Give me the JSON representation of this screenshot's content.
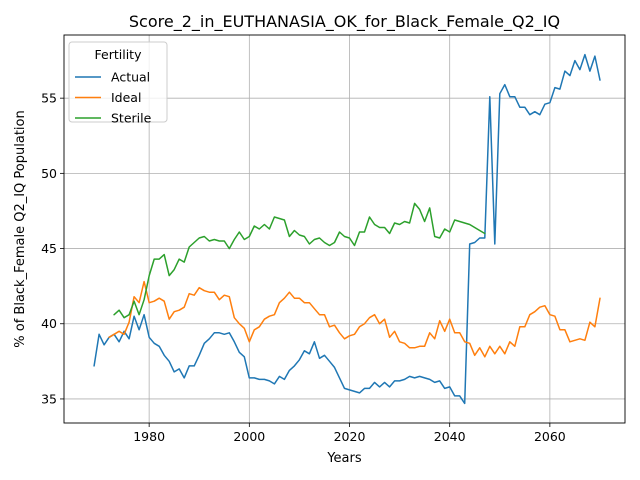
{
  "chart_data": {
    "type": "line",
    "title": "Score_2_in_EUTHANASIA_OK_for_Black_Female_Q2_IQ",
    "xlabel": "Years",
    "ylabel": "% of Black_Female Q2_IQ Population",
    "xlim": [
      1963,
      2075
    ],
    "ylim": [
      33.4,
      59.2
    ],
    "xticks": [
      1980,
      2000,
      2020,
      2040,
      2060
    ],
    "yticks": [
      35,
      40,
      45,
      50,
      55
    ],
    "grid": true,
    "legend": {
      "title": "Fertility",
      "placement": "upper-left"
    },
    "series": [
      {
        "name": "Actual",
        "color": "#1f77b4",
        "x": [
          1969,
          1970,
          1971,
          1972,
          1973,
          1974,
          1975,
          1976,
          1977,
          1978,
          1979,
          1980,
          1981,
          1982,
          1983,
          1984,
          1985,
          1986,
          1987,
          1988,
          1989,
          1990,
          1991,
          1992,
          1993,
          1994,
          1995,
          1996,
          1997,
          1998,
          1999,
          2000,
          2001,
          2002,
          2003,
          2004,
          2005,
          2006,
          2007,
          2008,
          2009,
          2010,
          2011,
          2012,
          2013,
          2014,
          2015,
          2016,
          2017,
          2018,
          2019,
          2020,
          2021,
          2022,
          2023,
          2024,
          2025,
          2026,
          2027,
          2028,
          2029,
          2030,
          2031,
          2032,
          2033,
          2034,
          2035,
          2036,
          2037,
          2038,
          2039,
          2040,
          2041,
          2042,
          2043,
          2044,
          2045,
          2046,
          2047,
          2048,
          2049,
          2050,
          2051,
          2052,
          2053,
          2054,
          2055,
          2056,
          2057,
          2058,
          2059,
          2060,
          2061,
          2062,
          2063,
          2064,
          2065,
          2066,
          2067,
          2068,
          2069,
          2070
        ],
        "values": [
          37.2,
          39.3,
          38.6,
          39.1,
          39.3,
          38.8,
          39.5,
          39.0,
          40.5,
          39.6,
          40.6,
          39.1,
          38.7,
          38.5,
          37.9,
          37.5,
          36.8,
          37.0,
          36.4,
          37.2,
          37.2,
          37.9,
          38.7,
          39.0,
          39.4,
          39.4,
          39.3,
          39.4,
          38.8,
          38.1,
          37.8,
          36.4,
          36.4,
          36.3,
          36.3,
          36.2,
          36.0,
          36.5,
          36.3,
          36.9,
          37.2,
          37.6,
          38.2,
          38.0,
          38.8,
          37.7,
          37.9,
          37.5,
          37.1,
          36.4,
          35.7,
          35.6,
          35.5,
          35.4,
          35.7,
          35.7,
          36.1,
          35.8,
          36.1,
          35.8,
          36.2,
          36.2,
          36.3,
          36.5,
          36.4,
          36.5,
          36.4,
          36.3,
          36.1,
          36.2,
          35.7,
          35.8,
          35.2,
          35.2,
          34.7,
          45.3,
          45.4,
          45.7,
          45.7,
          55.1,
          45.3,
          55.3,
          55.9,
          55.1,
          55.1,
          54.4,
          54.4,
          53.9,
          54.1,
          53.9,
          54.6,
          54.7,
          55.7,
          55.6,
          56.8,
          56.5,
          57.5,
          56.9,
          57.9,
          56.8,
          57.8,
          56.2
        ]
      },
      {
        "name": "Ideal",
        "color": "#ff7f0e",
        "x": [
          1972,
          1973,
          1974,
          1975,
          1976,
          1977,
          1978,
          1979,
          1980,
          1981,
          1982,
          1983,
          1984,
          1985,
          1986,
          1987,
          1988,
          1989,
          1990,
          1991,
          1992,
          1993,
          1994,
          1995,
          1996,
          1997,
          1998,
          1999,
          2000,
          2001,
          2002,
          2003,
          2004,
          2005,
          2006,
          2007,
          2008,
          2009,
          2010,
          2011,
          2012,
          2013,
          2014,
          2015,
          2016,
          2017,
          2018,
          2019,
          2020,
          2021,
          2022,
          2023,
          2024,
          2025,
          2026,
          2027,
          2028,
          2029,
          2030,
          2031,
          2032,
          2033,
          2034,
          2035,
          2036,
          2037,
          2038,
          2039,
          2040,
          2041,
          2042,
          2043,
          2044,
          2045,
          2046,
          2047,
          2048,
          2049,
          2050,
          2051,
          2052,
          2053,
          2054,
          2055,
          2056,
          2057,
          2058,
          2059,
          2060,
          2061,
          2062,
          2063,
          2064,
          2065,
          2066,
          2067,
          2068,
          2069,
          2070
        ],
        "values": [
          39.1,
          39.3,
          39.5,
          39.3,
          40.1,
          41.8,
          41.4,
          42.8,
          41.4,
          41.5,
          41.7,
          41.5,
          40.3,
          40.8,
          40.9,
          41.1,
          42.0,
          41.9,
          42.4,
          42.2,
          42.1,
          42.1,
          41.6,
          41.9,
          41.8,
          40.4,
          40.0,
          39.7,
          38.8,
          39.6,
          39.8,
          40.3,
          40.5,
          40.6,
          41.4,
          41.7,
          42.1,
          41.7,
          41.7,
          41.4,
          41.4,
          41.0,
          40.6,
          40.6,
          39.8,
          39.9,
          39.4,
          39.0,
          39.2,
          39.3,
          39.8,
          40.0,
          40.4,
          40.6,
          40.0,
          40.3,
          39.1,
          39.5,
          38.8,
          38.7,
          38.4,
          38.4,
          38.5,
          38.5,
          39.4,
          39.0,
          40.2,
          39.5,
          40.3,
          39.4,
          39.4,
          38.8,
          38.7,
          37.9,
          38.4,
          37.8,
          38.5,
          38.0,
          38.5,
          38.0,
          38.8,
          38.5,
          39.8,
          39.8,
          40.6,
          40.8,
          41.1,
          41.2,
          40.6,
          40.5,
          39.6,
          39.6,
          38.8,
          38.9,
          39.0,
          38.9,
          40.1,
          39.8,
          41.7
        ]
      },
      {
        "name": "Sterile",
        "color": "#2ca02c",
        "x": [
          1973,
          1974,
          1975,
          1976,
          1977,
          1978,
          1979,
          1980,
          1981,
          1982,
          1983,
          1984,
          1985,
          1986,
          1987,
          1988,
          1989,
          1990,
          1991,
          1992,
          1993,
          1994,
          1995,
          1996,
          1997,
          1998,
          1999,
          2000,
          2001,
          2002,
          2003,
          2004,
          2005,
          2006,
          2007,
          2008,
          2009,
          2010,
          2011,
          2012,
          2013,
          2014,
          2015,
          2016,
          2017,
          2018,
          2019,
          2020,
          2021,
          2022,
          2023,
          2024,
          2025,
          2026,
          2027,
          2028,
          2029,
          2030,
          2031,
          2032,
          2033,
          2034,
          2035,
          2036,
          2037,
          2038,
          2039,
          2040,
          2041,
          2042,
          2043,
          2044,
          2045,
          2046,
          2047
        ],
        "values": [
          40.6,
          40.9,
          40.4,
          40.6,
          41.5,
          40.6,
          41.6,
          43.2,
          44.3,
          44.3,
          44.6,
          43.2,
          43.6,
          44.3,
          44.1,
          45.1,
          45.4,
          45.7,
          45.8,
          45.5,
          45.6,
          45.5,
          45.5,
          45.0,
          45.6,
          46.1,
          45.6,
          45.8,
          46.5,
          46.3,
          46.6,
          46.3,
          47.1,
          47.0,
          46.9,
          45.8,
          46.2,
          45.9,
          45.8,
          45.3,
          45.6,
          45.7,
          45.4,
          45.2,
          45.4,
          46.1,
          45.8,
          45.7,
          45.2,
          46.1,
          46.1,
          47.1,
          46.6,
          46.4,
          46.4,
          46.0,
          46.7,
          46.6,
          46.8,
          46.7,
          48.0,
          47.6,
          46.8,
          47.7,
          45.8,
          45.7,
          46.3,
          46.1,
          46.9,
          46.8,
          46.7,
          46.6,
          46.4,
          46.2,
          46.0
        ]
      }
    ]
  }
}
